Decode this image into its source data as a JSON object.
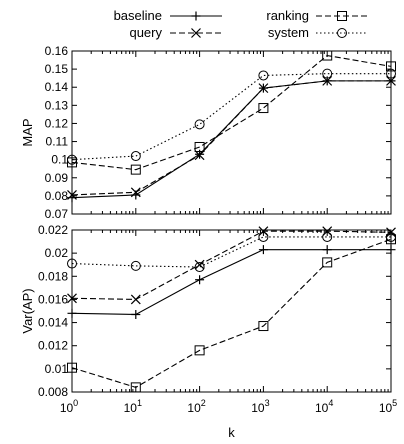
{
  "chart_data": [
    {
      "type": "line",
      "title": "",
      "xlabel": "",
      "ylabel": "MAP",
      "x": [
        1,
        10,
        100,
        1000,
        10000,
        100000
      ],
      "xscale": "log",
      "xlim": [
        1,
        100000
      ],
      "ylim": [
        0.07,
        0.16
      ],
      "yticks": [
        "0.07",
        "0.08",
        "0.09",
        "0.1",
        "0.11",
        "0.12",
        "0.13",
        "0.14",
        "0.15",
        "0.16"
      ],
      "grid": false,
      "legend": "top",
      "series": [
        {
          "name": "baseline",
          "style": "solid",
          "marker": "plus",
          "values": [
            0.079,
            0.0805,
            0.103,
            0.1395,
            0.1435,
            0.1435
          ]
        },
        {
          "name": "query",
          "style": "dashed",
          "marker": "cross",
          "values": [
            0.0805,
            0.082,
            0.1025,
            0.1395,
            0.1435,
            0.1435
          ]
        },
        {
          "name": "ranking",
          "style": "dashed",
          "marker": "square",
          "values": [
            0.0985,
            0.0945,
            0.107,
            0.1285,
            0.1575,
            0.1515
          ]
        },
        {
          "name": "system",
          "style": "dotted",
          "marker": "circle",
          "values": [
            0.1,
            0.102,
            0.1195,
            0.1465,
            0.1475,
            0.1475
          ]
        }
      ]
    },
    {
      "type": "line",
      "title": "",
      "xlabel": "k",
      "ylabel": "Var(AP)",
      "x": [
        1,
        10,
        100,
        1000,
        10000,
        100000
      ],
      "xscale": "log",
      "xlim": [
        1,
        100000
      ],
      "ylim": [
        0.008,
        0.022
      ],
      "yticks": [
        "0.008",
        "0.01",
        "0.012",
        "0.014",
        "0.016",
        "0.018",
        "0.02",
        "0.022"
      ],
      "xticks": [
        {
          "base": "10",
          "exp": "0"
        },
        {
          "base": "10",
          "exp": "1"
        },
        {
          "base": "10",
          "exp": "2"
        },
        {
          "base": "10",
          "exp": "3"
        },
        {
          "base": "10",
          "exp": "4"
        },
        {
          "base": "10",
          "exp": "5"
        }
      ],
      "grid": false,
      "series": [
        {
          "name": "baseline",
          "style": "solid",
          "marker": "plus",
          "values": [
            0.0148,
            0.0147,
            0.0177,
            0.0203,
            0.0203,
            0.0203
          ]
        },
        {
          "name": "query",
          "style": "dashed",
          "marker": "cross",
          "values": [
            0.0161,
            0.016,
            0.019,
            0.0219,
            0.0219,
            0.0218
          ]
        },
        {
          "name": "ranking",
          "style": "dashed",
          "marker": "square",
          "values": [
            0.0101,
            0.0084,
            0.0116,
            0.0137,
            0.0192,
            0.0212
          ]
        },
        {
          "name": "system",
          "style": "dotted",
          "marker": "circle",
          "values": [
            0.0191,
            0.0189,
            0.0188,
            0.0214,
            0.0214,
            0.0214
          ]
        }
      ]
    }
  ]
}
